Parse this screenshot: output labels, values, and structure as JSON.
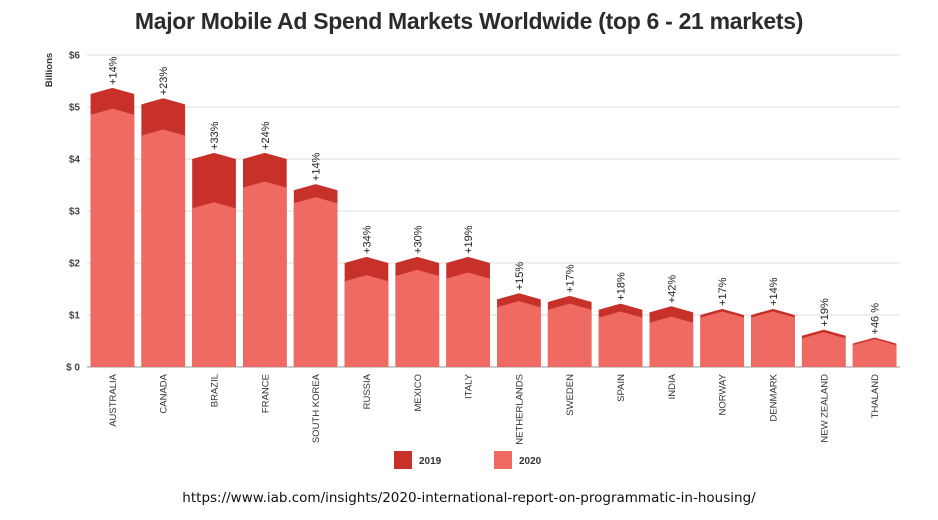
{
  "chart_data": {
    "type": "bar",
    "title": "Major Mobile Ad Spend Markets Worldwide (top 6 - 21 markets)",
    "xlabel": "",
    "ylabel": "Billions",
    "ylim": [
      0,
      6
    ],
    "y_ticks": [
      "$ 0",
      "$1",
      "$2",
      "$3",
      "$4",
      "$5",
      "$6"
    ],
    "grid": true,
    "categories": [
      "AUSTRALIA",
      "CANADA",
      "BRAZIL",
      "FRANCE",
      "SOUTH KOREA",
      "RUSSIA",
      "MEXICO",
      "ITALY",
      "NETHERLANDS",
      "SWEDEN",
      "SPAIN",
      "INDIA",
      "NORWAY",
      "DENMARK",
      "NEW ZEALAND",
      "THALAND"
    ],
    "series": [
      {
        "name": "2019",
        "color": "#c8302a",
        "values": [
          5.25,
          5.05,
          4.0,
          4.0,
          3.4,
          2.0,
          2.0,
          2.0,
          1.3,
          1.25,
          1.1,
          1.05,
          1.0,
          1.0,
          0.6,
          0.45
        ]
      },
      {
        "name": "2020",
        "color": "#ee6a62",
        "values": [
          4.85,
          4.45,
          3.05,
          3.45,
          3.15,
          1.65,
          1.75,
          1.7,
          1.15,
          1.1,
          0.95,
          0.85,
          0.95,
          0.95,
          0.55,
          0.42
        ]
      }
    ],
    "annotations": [
      "+14%",
      "+23%",
      "+33%",
      "+24%",
      "+14%",
      "+34%",
      "+30%",
      "+19%",
      "+15%",
      "+17%",
      "+18%",
      "+42%",
      "+17%",
      "+14%",
      "+19%",
      "+46 %"
    ],
    "legend": [
      "2019",
      "2020"
    ],
    "legend_position": "bottom"
  },
  "source_url": "https://www.iab.com/insights/2020-international-report-on-programmatic-in-housing/"
}
